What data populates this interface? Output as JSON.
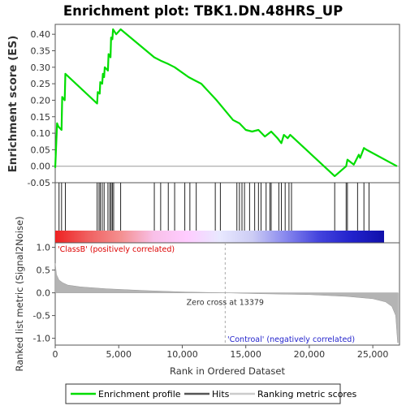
{
  "chart_data": {
    "type": "line",
    "title": "Enrichment plot: TBK1.DN.48HRS_UP",
    "top_panel": {
      "ylabel": "Enrichment score (ES)",
      "ylim": [
        -0.05,
        0.43
      ],
      "yticks": [
        "-0.05",
        "0.00",
        "0.05",
        "0.10",
        "0.15",
        "0.20",
        "0.25",
        "0.30",
        "0.35",
        "0.40"
      ],
      "ytick_values": [
        -0.05,
        0.0,
        0.05,
        0.1,
        0.15,
        0.2,
        0.25,
        0.3,
        0.35,
        0.4
      ],
      "series": [
        {
          "name": "Enrichment profile",
          "color": "#00dd00",
          "x": [
            0,
            150,
            250,
            500,
            550,
            750,
            800,
            3300,
            3350,
            3500,
            3550,
            3700,
            3750,
            3850,
            3900,
            4150,
            4200,
            4350,
            4400,
            4500,
            4550,
            4800,
            5150,
            7800,
            8300,
            8900,
            9400,
            10500,
            11000,
            11500,
            12700,
            14000,
            14500,
            15000,
            15500,
            16000,
            16500,
            17000,
            17500,
            17800,
            18000,
            18300,
            18500,
            22000,
            22900,
            23000,
            23500,
            23900,
            24000,
            24300,
            24500,
            26900
          ],
          "y": [
            -0.005,
            0.13,
            0.12,
            0.11,
            0.21,
            0.2,
            0.28,
            0.19,
            0.225,
            0.22,
            0.255,
            0.25,
            0.28,
            0.27,
            0.3,
            0.29,
            0.34,
            0.33,
            0.39,
            0.385,
            0.415,
            0.4,
            0.415,
            0.33,
            0.32,
            0.31,
            0.3,
            0.27,
            0.26,
            0.25,
            0.2,
            0.14,
            0.13,
            0.11,
            0.105,
            0.11,
            0.09,
            0.105,
            0.085,
            0.07,
            0.095,
            0.085,
            0.095,
            -0.03,
            0.0,
            0.02,
            0.005,
            0.035,
            0.025,
            0.055,
            0.05,
            0.0
          ]
        }
      ]
    },
    "hits_panel": {
      "hit_positions": [
        300,
        500,
        800,
        3300,
        3450,
        3550,
        3700,
        3850,
        4150,
        4300,
        4400,
        4500,
        4600,
        5150,
        7800,
        8300,
        8900,
        9400,
        10200,
        10600,
        11100,
        12600,
        13000,
        14300,
        14500,
        14700,
        14900,
        15300,
        15700,
        16000,
        16200,
        16600,
        16900,
        17000,
        17600,
        17800,
        18100,
        18400,
        18600,
        22000,
        22900,
        23000,
        23800,
        24300,
        24700
      ],
      "gradient_stops": [
        "#ee2222",
        "#f06060",
        "#f49090",
        "#f8c0e8",
        "#ffccff",
        "#e8e8ff",
        "#ccccf4",
        "#8888ee",
        "#4444dd",
        "#2222cc",
        "#1010aa"
      ]
    },
    "bottom_panel": {
      "ylabel": "Ranked list metric (Signal2Noise)",
      "ylim": [
        -1.15,
        1.1
      ],
      "yticks": [
        "1.0",
        "0.5",
        "0.0",
        "-0.5",
        "-1.0"
      ],
      "ytick_values": [
        1.0,
        0.5,
        0.0,
        -0.5,
        -1.0
      ],
      "metric_x": [
        0,
        100,
        300,
        600,
        1000,
        2000,
        4000,
        7000,
        10000,
        13379,
        16000,
        20000,
        23000,
        25000,
        26000,
        26500,
        26800,
        26950,
        27000
      ],
      "metric_y": [
        0.65,
        0.4,
        0.28,
        0.22,
        0.17,
        0.13,
        0.09,
        0.05,
        0.02,
        0.0,
        -0.02,
        -0.04,
        -0.08,
        -0.13,
        -0.2,
        -0.3,
        -0.5,
        -1.1,
        -1.1
      ],
      "zero_cross_label": "Zero cross at 13379",
      "zero_cross_x": 13379,
      "pos_label": "'ClassB' (positively correlated)",
      "neg_label": "'Controal' (negatively correlated)",
      "xlabel": "Rank in Ordered Dataset",
      "xlim": [
        0,
        27100
      ],
      "xticks": [
        "0",
        "5,000",
        "10,000",
        "15,000",
        "20,000",
        "25,000"
      ],
      "xtick_values": [
        0,
        5000,
        10000,
        15000,
        20000,
        25000
      ]
    },
    "legend": {
      "placement": "bottom",
      "items": [
        {
          "label": "Enrichment profile",
          "color": "#00dd00"
        },
        {
          "label": "Hits",
          "color": "#555555"
        },
        {
          "label": "Ranking metric scores",
          "color": "#cccccc"
        }
      ]
    }
  }
}
